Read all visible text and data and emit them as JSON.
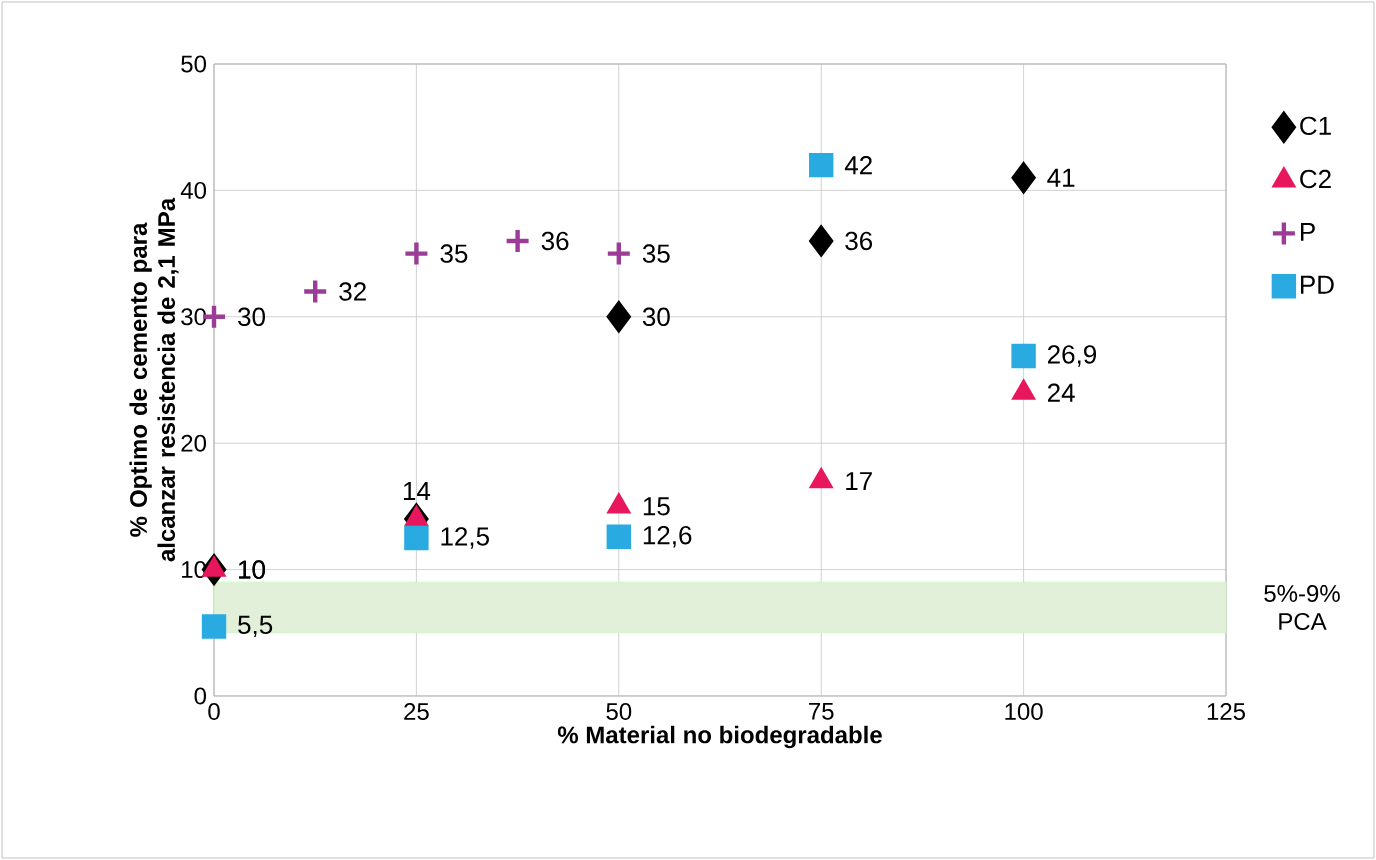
{
  "chart_data": {
    "type": "scatter",
    "xlabel": "% Material no biodegradable",
    "ylabel": "% Optimo de cemento para alcanzar resistencia de 2,1 MPa",
    "xlim": [
      0,
      125
    ],
    "xticks": [
      0,
      25,
      50,
      75,
      100,
      125
    ],
    "ylim": [
      0,
      50
    ],
    "yticks": [
      0,
      10,
      20,
      30,
      40,
      50
    ],
    "grid": true,
    "legend": "right",
    "series": [
      {
        "name": "C1",
        "color": "#000000",
        "marker": "diamond",
        "x": [
          0,
          25,
          50,
          75,
          100
        ],
        "values": [
          10,
          14,
          30,
          36,
          41
        ],
        "value_labels": [
          "10",
          "14",
          "30",
          "36",
          "41"
        ]
      },
      {
        "name": "C2",
        "color": "#e8175d",
        "marker": "triangle",
        "x": [
          0,
          25,
          50,
          75,
          100
        ],
        "values": [
          10,
          14,
          15,
          17,
          24
        ],
        "value_labels": [
          "10",
          null,
          "15",
          "17",
          "24"
        ]
      },
      {
        "name": "P",
        "color": "#9b3d96",
        "marker": "cross",
        "x": [
          0,
          12.5,
          25,
          37.5,
          50
        ],
        "values": [
          30,
          32,
          35,
          36,
          35
        ],
        "value_labels": [
          "30",
          "32",
          "35",
          "36",
          "35"
        ]
      },
      {
        "name": "PD",
        "color": "#29abe2",
        "marker": "square",
        "x": [
          0,
          25,
          50,
          75,
          100
        ],
        "values": [
          5.5,
          12.5,
          12.6,
          42,
          26.9
        ],
        "value_labels": [
          "5,5",
          "12,5",
          "12,6",
          "42",
          "26,9"
        ]
      }
    ],
    "bands": [
      {
        "axis": "y",
        "from": 5,
        "to": 9,
        "label": "5%-9% PCA",
        "color": "#e2efd9"
      }
    ]
  }
}
